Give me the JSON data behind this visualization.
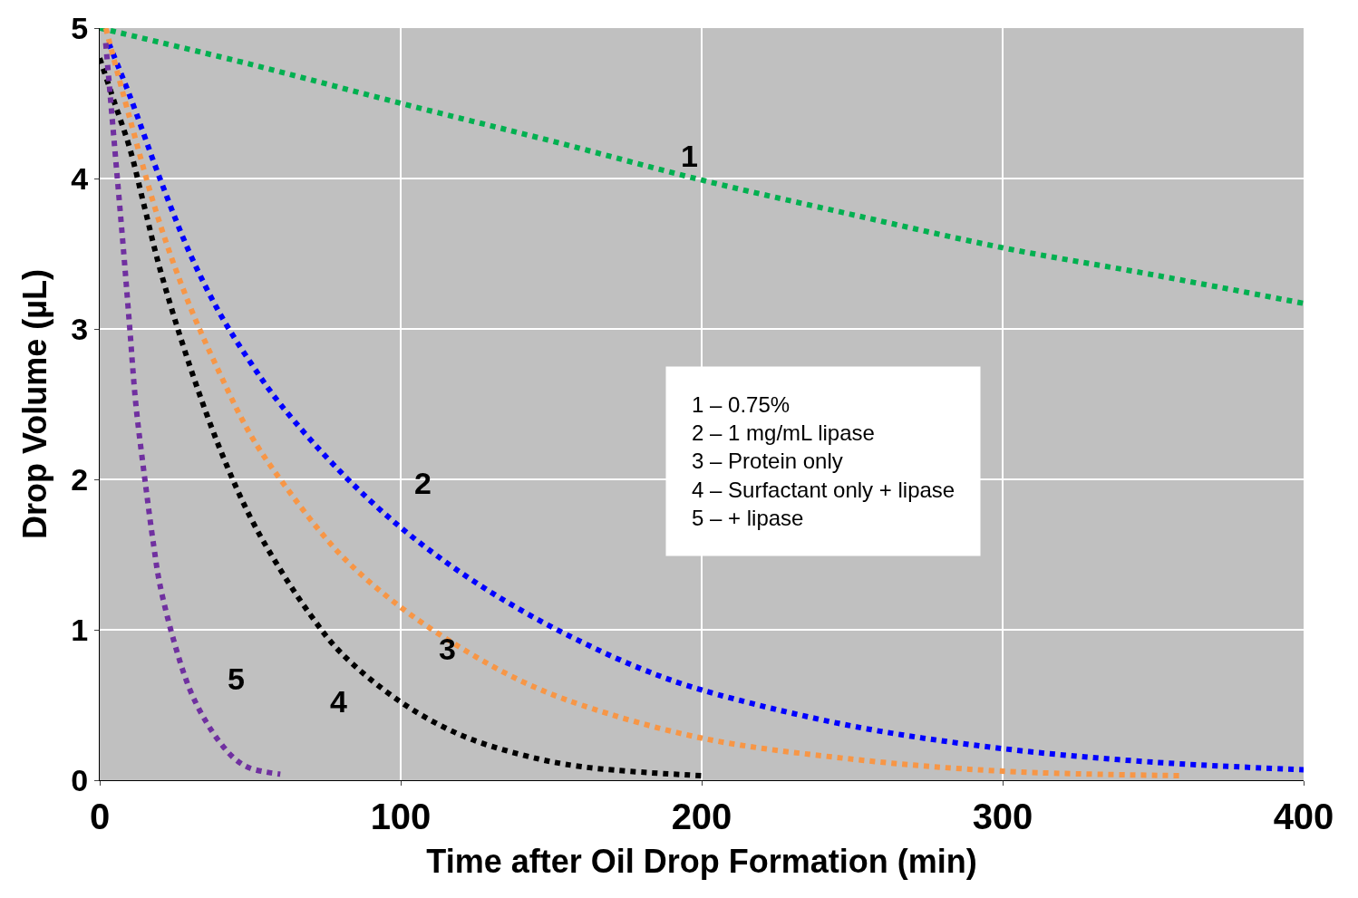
{
  "chart_data": {
    "type": "line",
    "xlabel": "Time after Oil Drop Formation (min)",
    "ylabel": "Drop Volume (µL)",
    "xlim": [
      0,
      400
    ],
    "xticks": [
      0,
      100,
      200,
      300,
      400
    ],
    "ylim": [
      0,
      5
    ],
    "yticks": [
      0,
      1,
      2,
      3,
      4,
      5
    ],
    "grid": true,
    "line_style": "dotted",
    "series": [
      {
        "color": "#00b050",
        "x": [
          0,
          50,
          100,
          150,
          200,
          250,
          300,
          350,
          400
        ],
        "values": [
          5.0,
          4.76,
          4.5,
          4.25,
          3.99,
          3.76,
          3.54,
          3.36,
          3.17
        ]
      },
      {
        "color": "#0000ff",
        "x": [
          3,
          10,
          20,
          30,
          40,
          50,
          60,
          80,
          100,
          120,
          140,
          160,
          180,
          200,
          250,
          300,
          350,
          400
        ],
        "values": [
          4.9,
          4.55,
          4.0,
          3.5,
          3.1,
          2.78,
          2.5,
          2.05,
          1.68,
          1.38,
          1.13,
          0.92,
          0.74,
          0.6,
          0.36,
          0.21,
          0.12,
          0.07
        ]
      },
      {
        "color": "#f79646",
        "x": [
          2,
          10,
          20,
          30,
          40,
          50,
          60,
          80,
          100,
          120,
          140,
          160,
          200,
          250,
          300,
          360
        ],
        "values": [
          5.0,
          4.4,
          3.7,
          3.15,
          2.7,
          2.3,
          2.0,
          1.5,
          1.15,
          0.88,
          0.66,
          0.5,
          0.28,
          0.14,
          0.06,
          0.03
        ]
      },
      {
        "color": "#000000",
        "x": [
          0,
          5,
          10,
          15,
          20,
          30,
          40,
          50,
          60,
          70,
          80,
          100,
          120,
          140,
          160,
          200
        ],
        "values": [
          4.8,
          4.5,
          4.2,
          3.8,
          3.4,
          2.75,
          2.2,
          1.75,
          1.4,
          1.1,
          0.85,
          0.52,
          0.3,
          0.17,
          0.09,
          0.03
        ]
      },
      {
        "color": "#7030a0",
        "x": [
          2,
          5,
          8,
          10,
          12,
          15,
          18,
          20,
          25,
          30,
          35,
          40,
          45,
          50,
          60
        ],
        "values": [
          4.9,
          4.2,
          3.5,
          3.0,
          2.5,
          2.0,
          1.55,
          1.3,
          0.9,
          0.6,
          0.4,
          0.25,
          0.14,
          0.08,
          0.04
        ]
      }
    ],
    "annotations": [
      "1",
      "2",
      "3",
      "4",
      "5",
      "1 – 0.75%",
      "2 – 1 mg/mL lipase",
      "3 – Protein only",
      "4 – Surfactant only + lipase",
      "5 – + lipase"
    ]
  }
}
